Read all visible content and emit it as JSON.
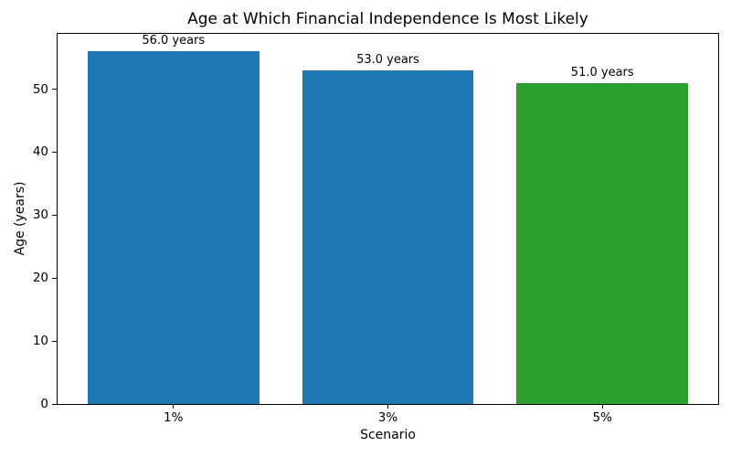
{
  "chart_data": {
    "type": "bar",
    "title": "Age at Which Financial Independence Is Most Likely",
    "xlabel": "Scenario",
    "ylabel": "Age (years)",
    "categories": [
      "1%",
      "3%",
      "5%"
    ],
    "values": [
      56.0,
      53.0,
      51.0
    ],
    "bar_labels": [
      "56.0 years",
      "53.0 years",
      "51.0 years"
    ],
    "bar_colors": [
      "#1f77b4",
      "#1f77b4",
      "#2ca02c"
    ],
    "bar_width": 0.8,
    "xlim": [
      -0.54,
      2.54
    ],
    "ylim": [
      0,
      58.8
    ],
    "yticks": [
      0,
      10,
      20,
      30,
      40,
      50
    ],
    "grid": false,
    "legend_position": "none",
    "text_color": "#000000",
    "background_color": "#ffffff"
  }
}
